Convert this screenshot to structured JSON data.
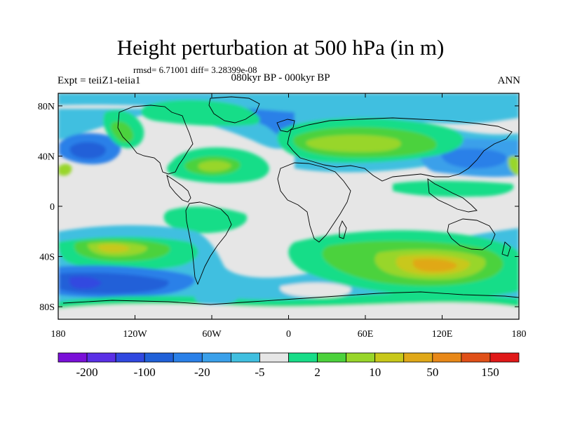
{
  "header": {
    "title": "Height perturbation at 500 hPa (in m)",
    "stats": "rmsd= 6.71001 diff= 3.28399e-08",
    "experiment": "Expt = teiiZ1-teiia1",
    "period": "080kyr BP - 000kyr BP",
    "season": "ANN"
  },
  "axes": {
    "lat_labels": [
      "80N",
      "40N",
      "0",
      "40S",
      "80S"
    ],
    "lat_values": [
      80,
      40,
      0,
      -40,
      -80
    ],
    "lon_labels": [
      "180",
      "120W",
      "60W",
      "0",
      "60E",
      "120E",
      "180"
    ],
    "lon_values": [
      -180,
      -120,
      -60,
      0,
      60,
      120,
      180
    ]
  },
  "colorbar": {
    "colors": [
      "#7a10d8",
      "#5a2fe6",
      "#3048e0",
      "#2060d8",
      "#2a80e8",
      "#3aa0ea",
      "#40bfe0",
      "#e6e6e6",
      "#18dd88",
      "#4cd23c",
      "#98d62a",
      "#c8c81a",
      "#e0a818",
      "#e88818",
      "#e05018",
      "#e01818"
    ],
    "labels": [
      "-200",
      "-100",
      "-20",
      "-5",
      "2",
      "10",
      "50",
      "150"
    ]
  }
}
